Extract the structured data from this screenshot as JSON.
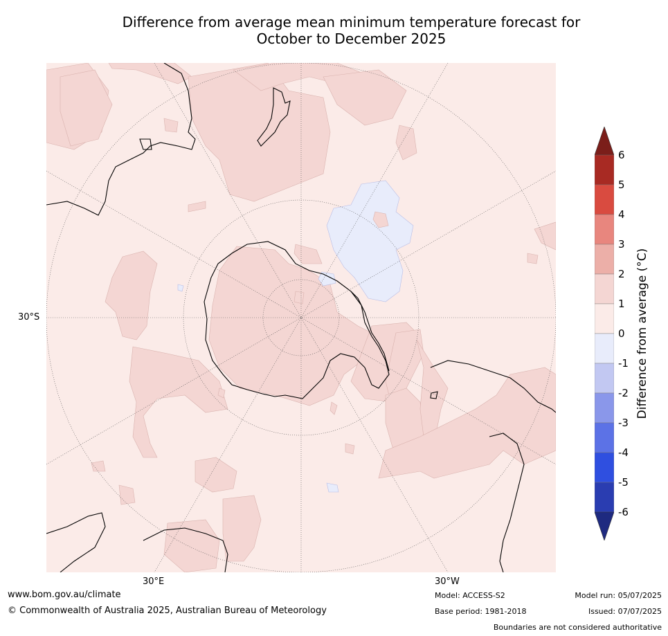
{
  "title": {
    "line1": "Difference from average mean minimum temperature forecast for",
    "line2": "October to December 2025"
  },
  "map": {
    "projection": "south polar stereographic",
    "lat_label": "30°S",
    "lon_labels": [
      "30°E",
      "30°W"
    ],
    "regions": {
      "warm_1_2": [
        "South Pacific near New Zealand",
        "Antarctica",
        "South Indian Ocean",
        "South Atlantic near South America",
        "Southern Ocean"
      ],
      "cool_0_-1": [
        "South Pacific east of New Zealand"
      ]
    }
  },
  "colorbar": {
    "title": "Difference from average (°C)",
    "ticks": [
      "6",
      "5",
      "4",
      "3",
      "2",
      "1",
      "0",
      "-1",
      "-2",
      "-3",
      "-4",
      "-5",
      "-6"
    ],
    "colors": {
      "above_6": "#7b1e1a",
      "5_to_6": "#a82a23",
      "4_to_5": "#d94b40",
      "3_to_4": "#e8867e",
      "2_to_3": "#ecafa8",
      "1_to_2": "#f4d6d3",
      "0_to_1": "#fbebe8",
      "-1_to_0": "#e8ecfb",
      "-2_to_-1": "#c2c8f2",
      "-3_to_-2": "#8a97ea",
      "-4_to_-3": "#5c72e6",
      "-5_to_-4": "#2f4fe0",
      "-6_to_-5": "#2a3db1",
      "below_-6": "#1e2a80"
    }
  },
  "footer": {
    "website": "www.bom.gov.au/climate",
    "copyright": "© Commonwealth of Australia 2025, Australian Bureau of Meteorology",
    "model": "Model: ACCESS-S2",
    "base_period": "Base period: 1981-2018",
    "model_run": "Model run: 05/07/2025",
    "issued": "Issued: 07/07/2025",
    "disclaimer": "Boundaries are not considered authoritative"
  }
}
